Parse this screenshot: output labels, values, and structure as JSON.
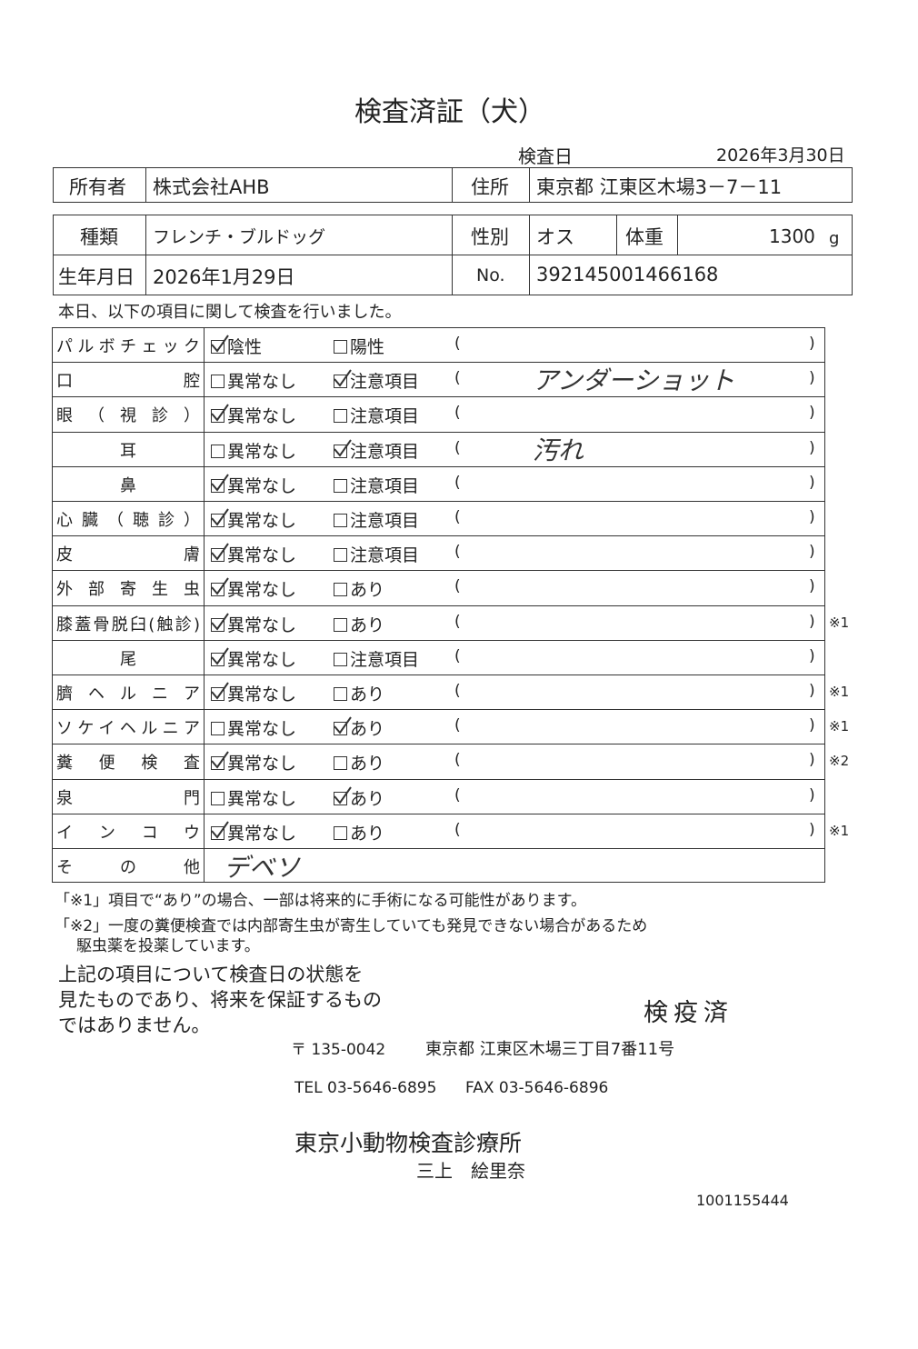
{
  "title": "検査済証（犬）",
  "date_label": "検査日",
  "date": "2026年3月30日",
  "owner": {
    "label": "所有者",
    "value": "株式会社AHB",
    "address_label": "住所",
    "address": "東京都 江東区木場3－7－11"
  },
  "pet": {
    "kind_label": "種類",
    "kind": "フレンチ・ブルドッグ",
    "sex_label": "性別",
    "sex": "オス",
    "weight_label": "体重",
    "weight": 1300,
    "weight_unit": "g",
    "birth_label": "生年月日",
    "birth": "2026年1月29日",
    "no_label": "No.",
    "no": "392145001466168"
  },
  "intro": "本日、以下の項目に関して検査を行いました。",
  "paren_open": "(",
  "paren_close": ")",
  "checks": [
    {
      "label": "パルボチェック",
      "options": [
        "陰性",
        "陽性"
      ],
      "checked": 0
    },
    {
      "label": "口腔",
      "options": [
        "異常なし",
        "注意項目"
      ],
      "checked": 1,
      "note": "アンダーショット"
    },
    {
      "label": "眼（視診）",
      "options": [
        "異常なし",
        "注意項目"
      ],
      "checked": 0
    },
    {
      "label": "耳",
      "options": [
        "異常なし",
        "注意項目"
      ],
      "checked": 1,
      "note": "汚れ"
    },
    {
      "label": "鼻",
      "options": [
        "異常なし",
        "注意項目"
      ],
      "checked": 0
    },
    {
      "label": "心臓（聴診）",
      "options": [
        "異常なし",
        "注意項目"
      ],
      "checked": 0
    },
    {
      "label": "皮膚",
      "options": [
        "異常なし",
        "注意項目"
      ],
      "checked": 0
    },
    {
      "label": "外部寄生虫",
      "options": [
        "異常なし",
        "あり"
      ],
      "checked": 0
    },
    {
      "label": "膝蓋骨脱臼(触診)",
      "options": [
        "異常なし",
        "あり"
      ],
      "checked": 0,
      "mark": "※1"
    },
    {
      "label": "尾",
      "options": [
        "異常なし",
        "注意項目"
      ],
      "checked": 0
    },
    {
      "label": "臍ヘルニア",
      "options": [
        "異常なし",
        "あり"
      ],
      "checked": 0,
      "mark": "※1"
    },
    {
      "label": "ソケイヘルニア",
      "options": [
        "異常なし",
        "あり"
      ],
      "checked": 1,
      "mark": "※1"
    },
    {
      "label": "糞便検査",
      "options": [
        "異常なし",
        "あり"
      ],
      "checked": 0,
      "mark": "※2"
    },
    {
      "label": "泉門",
      "options": [
        "異常なし",
        "あり"
      ],
      "checked": 1
    },
    {
      "label": "インコウ",
      "options": [
        "異常なし",
        "あり"
      ],
      "checked": 0,
      "mark": "※1"
    }
  ],
  "other": {
    "label": "その他",
    "note": "デベソ"
  },
  "footnotes": [
    "「※1」項目で“あり”の場合、一部は将来的に手術になる可能性があります。",
    "「※2」一度の糞便検査では内部寄生虫が寄生していても発見できない場合があるため",
    "駆虫薬を投薬しています。"
  ],
  "statement": [
    "上記の項目について検査日の状態を",
    "見たものであり、将来を保証するもの",
    "ではありません。"
  ],
  "stamp": "検疫済",
  "clinic": {
    "postal": "〒 135-0042",
    "address": "東京都 江東区木場三丁目7番11号",
    "tel": "TEL 03-5646-6895",
    "fax": "FAX 03-5646-6896",
    "name": "東京小動物検査診療所",
    "person": "三上　絵里奈"
  },
  "code": "1001155444"
}
